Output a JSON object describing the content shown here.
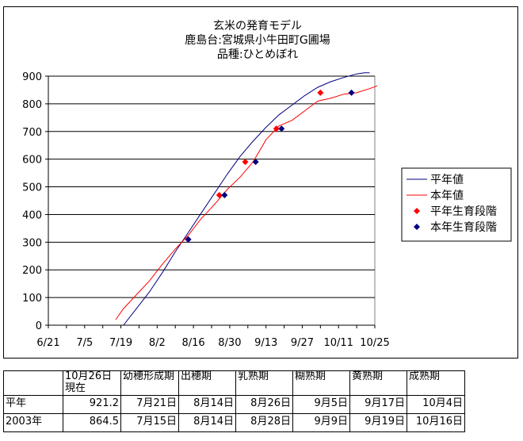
{
  "chart_data": {
    "type": "line",
    "title_lines": [
      "玄米の発育モデル",
      "鹿島台:宮城県小牛田町G圃場",
      "品種:ひとめぼれ"
    ],
    "x_ticks": [
      "6/21",
      "7/5",
      "7/19",
      "8/2",
      "8/16",
      "8/30",
      "9/13",
      "9/27",
      "10/11",
      "10/25"
    ],
    "y_ticks": [
      "0",
      "100",
      "200",
      "300",
      "400",
      "500",
      "600",
      "700",
      "800",
      "900"
    ],
    "ylim": [
      0,
      900
    ],
    "xlim_days_from_first_tick": [
      0,
      126
    ],
    "grid": "horizontal",
    "legend_position": "right",
    "series": [
      {
        "name": "平年値",
        "color": "#000080",
        "kind": "line",
        "x_dates": [
          "7/20",
          "7/25",
          "7/30",
          "8/4",
          "8/9",
          "8/14",
          "8/19",
          "8/24",
          "8/29",
          "9/3",
          "9/8",
          "9/13",
          "9/18",
          "9/23",
          "9/28",
          "10/3",
          "10/8",
          "10/13",
          "10/18",
          "10/21",
          "10/23"
        ],
        "values": [
          0,
          60,
          120,
          190,
          265,
          335,
          405,
          475,
          545,
          610,
          665,
          715,
          760,
          795,
          830,
          860,
          880,
          895,
          908,
          912,
          912
        ]
      },
      {
        "name": "本年値",
        "color": "#FF0000",
        "kind": "line",
        "x_dates": [
          "7/17",
          "7/20",
          "7/25",
          "7/30",
          "8/4",
          "8/9",
          "8/14",
          "8/19",
          "8/24",
          "8/29",
          "9/3",
          "9/8",
          "9/13",
          "9/18",
          "9/23",
          "9/28",
          "10/3",
          "10/8",
          "10/13",
          "10/18",
          "10/23",
          "10/26"
        ],
        "values": [
          20,
          60,
          110,
          160,
          220,
          275,
          325,
          385,
          435,
          490,
          535,
          590,
          670,
          720,
          740,
          775,
          810,
          820,
          835,
          840,
          855,
          865
        ]
      },
      {
        "name": "平年生育段階",
        "color": "#FF0000",
        "kind": "points",
        "x_dates": [
          "8/14",
          "8/26",
          "9/5",
          "9/17",
          "10/4"
        ],
        "values": [
          310,
          470,
          590,
          710,
          840
        ]
      },
      {
        "name": "本年生育段階",
        "color": "#000080",
        "kind": "points",
        "x_dates": [
          "8/14",
          "8/28",
          "9/9",
          "9/19",
          "10/16"
        ],
        "values": [
          310,
          470,
          590,
          710,
          840
        ]
      }
    ]
  },
  "stage_table": {
    "headers": [
      "",
      "10月26日現在",
      "幼穂形成期",
      "出穂期",
      "乳熟期",
      "糊熟期",
      "黄熟期",
      "成熟期"
    ],
    "rows": [
      [
        "平年",
        "921.2",
        "7月21日",
        "8月14日",
        "8月26日",
        "9月5日",
        "9月17日",
        "10月4日"
      ],
      [
        "2003年",
        "864.5",
        "7月15日",
        "8月14日",
        "8月28日",
        "9月9日",
        "9月19日",
        "10月16日"
      ]
    ]
  }
}
